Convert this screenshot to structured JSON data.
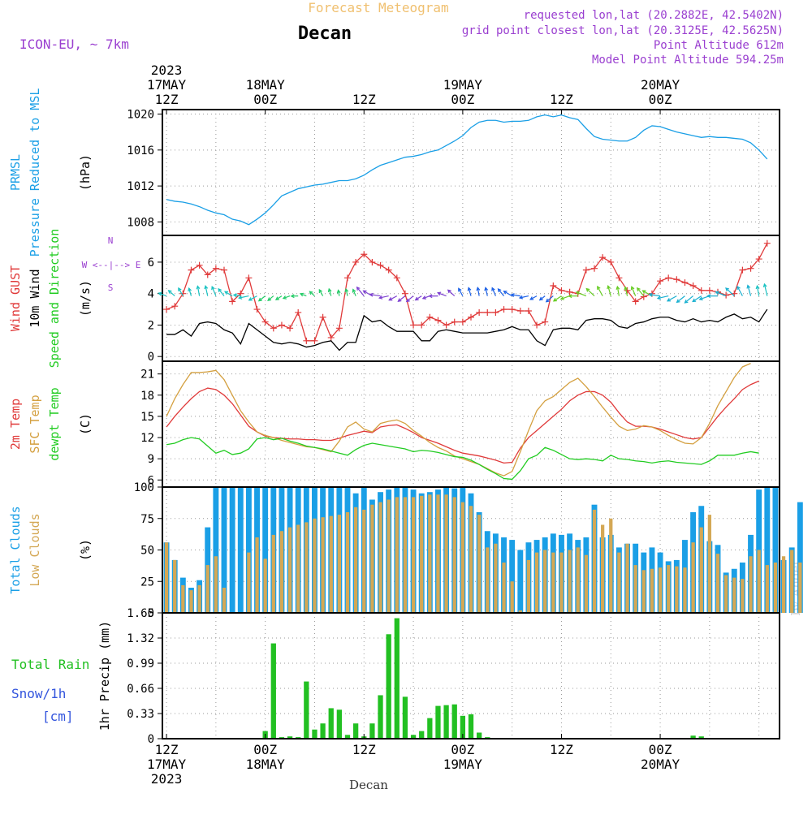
{
  "header": {
    "title": "Forecast Meteogram",
    "location": "Decan",
    "model": "ICON-EU, ~ 7km",
    "requested": "requested lon,lat (20.2882E, 42.5402N)",
    "grid_point": "grid point closest lon,lat (20.3125E, 42.5625N)",
    "point_alt": "Point Altitude 612m",
    "model_alt": "Model Point Altitude 594.25m",
    "footer": "Decan",
    "credit": "by Angel"
  },
  "time_axis": {
    "top": [
      {
        "t": 12,
        "lines": [
          "2023",
          "17MAY",
          "12Z"
        ]
      },
      {
        "t": 24,
        "lines": [
          "18MAY",
          "00Z"
        ]
      },
      {
        "t": 36,
        "lines": [
          "12Z"
        ]
      },
      {
        "t": 48,
        "lines": [
          "19MAY",
          "00Z"
        ]
      },
      {
        "t": 60,
        "lines": [
          "12Z"
        ]
      },
      {
        "t": 72,
        "lines": [
          "20MAY",
          "00Z"
        ]
      }
    ],
    "bottom": [
      {
        "t": 12,
        "lines": [
          "12Z",
          "17MAY",
          "2023"
        ]
      },
      {
        "t": 24,
        "lines": [
          "00Z",
          "18MAY"
        ]
      },
      {
        "t": 36,
        "lines": [
          "12Z"
        ]
      },
      {
        "t": 48,
        "lines": [
          "00Z",
          "19MAY"
        ]
      },
      {
        "t": 60,
        "lines": [
          "12Z"
        ]
      },
      {
        "t": 72,
        "lines": [
          "00Z",
          "20MAY"
        ]
      }
    ]
  },
  "colors": {
    "pressure": "#1a9fe6",
    "gust": "#e03a3a",
    "wind": "#000000",
    "t2m": "#e03a3a",
    "sfc": "#d4a040",
    "dew": "#22cc22",
    "total_cloud": "#1a9fe6",
    "low_cloud": "#d4a855",
    "rain": "#22c022",
    "snow": "#3355dd",
    "purple": "#9a3fd0",
    "title_orange": "#f0c070"
  },
  "chart_data": [
    {
      "type": "line",
      "panel": "pressure",
      "label_lines": [
        "PRMSL",
        "Pressure Reduced to MSL"
      ],
      "unit": "(hPa)",
      "x_start": 12,
      "x_step": 1,
      "ylim": [
        1006.5,
        1020.5
      ],
      "yticks": [
        1008,
        1012,
        1016,
        1020
      ],
      "series": [
        {
          "values": [
            1010.5,
            1010.3,
            1010.2,
            1010.0,
            1009.7,
            1009.3,
            1009.0,
            1008.8,
            1008.3,
            1008.1,
            1007.7,
            1008.3,
            1009.0,
            1009.9,
            1010.9,
            1011.3,
            1011.7,
            1011.9,
            1012.1,
            1012.2,
            1012.4,
            1012.6,
            1012.6,
            1012.8,
            1013.2,
            1013.8,
            1014.3,
            1014.6,
            1014.9,
            1015.2,
            1015.3,
            1015.5,
            1015.8,
            1016.0,
            1016.5,
            1017.0,
            1017.6,
            1018.5,
            1019.1,
            1019.3,
            1019.3,
            1019.1,
            1019.2,
            1019.2,
            1019.3,
            1019.7,
            1019.9,
            1019.7,
            1019.9,
            1019.6,
            1019.4,
            1018.4,
            1017.5,
            1017.2,
            1017.1,
            1017.0,
            1017.0,
            1017.4,
            1018.2,
            1018.7,
            1018.6,
            1018.3,
            1018.0,
            1017.8,
            1017.6,
            1017.4,
            1017.5,
            1017.4,
            1017.4,
            1017.3,
            1017.2,
            1016.8,
            1016.0,
            1015.0
          ]
        }
      ]
    },
    {
      "type": "line",
      "panel": "wind",
      "label_lines": [
        "Wind GUST",
        "10m Wind",
        "Speed and Direction"
      ],
      "unit": "(m/s)",
      "compass": [
        "N",
        "W <--|--> E",
        "S"
      ],
      "x_start": 12,
      "x_step": 1,
      "ylim": [
        -0.3,
        7.7
      ],
      "yticks": [
        0,
        2,
        4,
        6
      ],
      "series": [
        {
          "name": "Wind GUST",
          "values": [
            3.0,
            3.2,
            4.0,
            5.5,
            5.8,
            5.2,
            5.6,
            5.5,
            3.5,
            4.0,
            5.0,
            3.0,
            2.2,
            1.8,
            2.0,
            1.8,
            2.8,
            1.0,
            1.0,
            2.5,
            1.2,
            1.8,
            5.0,
            6.0,
            6.5,
            6.0,
            5.8,
            5.5,
            5.0,
            4.0,
            2.0,
            2.0,
            2.5,
            2.3,
            2.0,
            2.2,
            2.2,
            2.5,
            2.8,
            2.8,
            2.8,
            3.0,
            3.0,
            2.9,
            2.9,
            2.0,
            2.2,
            4.5,
            4.2,
            4.1,
            4.0,
            5.5,
            5.6,
            6.3,
            6.0,
            5.0,
            4.2,
            3.5,
            3.8,
            4.0,
            4.8,
            5.0,
            4.9,
            4.7,
            4.5,
            4.2,
            4.2,
            4.1,
            3.9,
            4.0,
            5.5,
            5.6,
            6.2,
            7.2
          ]
        },
        {
          "name": "10m Wind",
          "values": [
            1.4,
            1.4,
            1.7,
            1.3,
            2.1,
            2.2,
            2.1,
            1.7,
            1.5,
            0.8,
            2.1,
            1.7,
            1.3,
            0.9,
            0.8,
            0.9,
            0.8,
            0.6,
            0.7,
            0.9,
            1.0,
            0.4,
            0.9,
            0.9,
            2.6,
            2.2,
            2.3,
            1.9,
            1.6,
            1.6,
            1.6,
            1.0,
            1.0,
            1.6,
            1.7,
            1.6,
            1.5,
            1.5,
            1.5,
            1.5,
            1.6,
            1.7,
            1.9,
            1.7,
            1.7,
            1.0,
            0.7,
            1.7,
            1.8,
            1.8,
            1.7,
            2.3,
            2.4,
            2.4,
            2.3,
            1.9,
            1.8,
            2.1,
            2.2,
            2.4,
            2.5,
            2.5,
            2.3,
            2.2,
            2.4,
            2.2,
            2.3,
            2.2,
            2.5,
            2.7,
            2.4,
            2.5,
            2.2,
            3.0
          ]
        }
      ]
    },
    {
      "type": "line",
      "panel": "temperature",
      "label_lines": [
        "2m Temp",
        "SFC Temp",
        "dewpt Temp"
      ],
      "unit": "(C)",
      "x_start": 12,
      "x_step": 1,
      "ylim": [
        5.0,
        22.8
      ],
      "yticks": [
        6,
        9,
        12,
        15,
        18,
        21
      ],
      "series": [
        {
          "name": "2m Temp",
          "values": [
            13.5,
            15.0,
            16.3,
            17.5,
            18.5,
            19.0,
            18.8,
            18.0,
            16.8,
            15.2,
            13.6,
            12.8,
            12.2,
            12.0,
            11.9,
            11.8,
            11.8,
            11.7,
            11.7,
            11.6,
            11.6,
            11.9,
            12.3,
            12.6,
            12.9,
            12.7,
            13.5,
            13.7,
            13.8,
            13.3,
            12.7,
            12.0,
            11.6,
            11.2,
            10.7,
            10.2,
            9.8,
            9.6,
            9.4,
            9.1,
            8.8,
            8.4,
            8.5,
            10.5,
            12.0,
            13.0,
            14.0,
            15.0,
            16.0,
            17.2,
            18.0,
            18.5,
            18.5,
            18.0,
            17.0,
            15.5,
            14.2,
            13.6,
            13.6,
            13.5,
            13.2,
            12.8,
            12.4,
            12.0,
            11.8,
            12.0,
            13.5,
            15.0,
            16.3,
            17.5,
            18.8,
            19.5,
            20.0
          ]
        },
        {
          "name": "SFC Temp",
          "values": [
            15.0,
            17.5,
            19.5,
            21.2,
            21.2,
            21.3,
            21.5,
            20.2,
            18.0,
            15.8,
            14.2,
            12.8,
            12.3,
            12.0,
            11.6,
            11.3,
            11.0,
            10.7,
            10.6,
            10.3,
            10.0,
            11.5,
            13.5,
            14.2,
            13.2,
            12.8,
            14.0,
            14.3,
            14.5,
            14.0,
            13.0,
            12.2,
            11.3,
            10.6,
            10.1,
            9.4,
            9.0,
            8.6,
            8.2,
            7.6,
            7.0,
            6.6,
            7.2,
            10.0,
            13.0,
            15.8,
            17.2,
            17.8,
            18.8,
            19.8,
            20.4,
            19.2,
            17.8,
            16.3,
            14.9,
            13.6,
            13.0,
            13.2,
            13.7,
            13.5,
            13.0,
            12.3,
            11.7,
            11.2,
            11.1,
            12.0,
            14.0,
            16.5,
            18.5,
            20.5,
            22.0,
            22.5
          ]
        },
        {
          "name": "dewpt Temp",
          "values": [
            11.0,
            11.2,
            11.7,
            12.0,
            11.8,
            10.8,
            9.8,
            10.2,
            9.6,
            9.8,
            10.4,
            11.8,
            12.0,
            11.7,
            11.9,
            11.5,
            11.2,
            10.8,
            10.6,
            10.4,
            10.1,
            9.8,
            9.5,
            10.3,
            10.9,
            11.2,
            11.0,
            10.8,
            10.6,
            10.4,
            10.0,
            10.2,
            10.1,
            9.9,
            9.6,
            9.3,
            9.2,
            8.8,
            8.2,
            7.5,
            6.9,
            6.2,
            6.1,
            7.3,
            9.0,
            9.5,
            10.6,
            10.2,
            9.6,
            9.0,
            8.9,
            9.0,
            8.9,
            8.7,
            9.5,
            9.0,
            8.9,
            8.7,
            8.6,
            8.4,
            8.6,
            8.7,
            8.5,
            8.4,
            8.3,
            8.2,
            8.7,
            9.5,
            9.5,
            9.5,
            9.8,
            10.0,
            9.8
          ]
        }
      ]
    },
    {
      "type": "bar",
      "panel": "clouds",
      "label_lines": [
        "Total Clouds",
        "Low Clouds"
      ],
      "unit": "(%)",
      "x_start": 12,
      "x_step": 1,
      "ylim": [
        0,
        100
      ],
      "yticks": [
        0,
        25,
        50,
        75,
        100
      ],
      "series": [
        {
          "name": "Total Clouds",
          "values": [
            56,
            42,
            28,
            20,
            26,
            68,
            100,
            100,
            100,
            100,
            100,
            100,
            100,
            100,
            100,
            100,
            100,
            100,
            100,
            100,
            100,
            100,
            100,
            95,
            100,
            90,
            96,
            98,
            100,
            100,
            98,
            95,
            96,
            98,
            100,
            99,
            100,
            95,
            80,
            65,
            63,
            60,
            58,
            50,
            56,
            58,
            60,
            63,
            62,
            63,
            58,
            60,
            86,
            60,
            62,
            52,
            55,
            55,
            48,
            52,
            48,
            41,
            42,
            58,
            80,
            85,
            57,
            54,
            32,
            35,
            40,
            62,
            98,
            100,
            100,
            42,
            52,
            88
          ]
        },
        {
          "name": "Low Clouds",
          "values": [
            56,
            42,
            22,
            18,
            22,
            38,
            45,
            20,
            0,
            0,
            48,
            60,
            43,
            62,
            65,
            68,
            70,
            72,
            75,
            76,
            77,
            78,
            80,
            84,
            82,
            86,
            88,
            90,
            92,
            92,
            92,
            93,
            94,
            94,
            94,
            92,
            88,
            85,
            78,
            52,
            55,
            40,
            25,
            2,
            42,
            48,
            50,
            48,
            48,
            50,
            52,
            46,
            82,
            70,
            75,
            48,
            55,
            38,
            34,
            35,
            36,
            38,
            37,
            36,
            56,
            68,
            78,
            47,
            30,
            28,
            27,
            45,
            50,
            38,
            40,
            45,
            50,
            40
          ]
        }
      ]
    },
    {
      "type": "bar",
      "panel": "precip",
      "label_lines": [
        "1hr Precip (mm)"
      ],
      "left_labels": [
        "Total  Rain",
        "Snow/1h",
        "[cm]"
      ],
      "x_start": 12,
      "x_step": 1,
      "ylim": [
        0,
        1.65
      ],
      "yticks": [
        0,
        0.33,
        0.66,
        0.99,
        1.32,
        1.65
      ],
      "series": [
        {
          "name": "Total Rain",
          "values": [
            0,
            0,
            0,
            0,
            0,
            0,
            0,
            0,
            0,
            0,
            0,
            0,
            0.1,
            1.25,
            0.02,
            0.03,
            0.02,
            0.75,
            0.12,
            0.2,
            0.4,
            0.38,
            0.05,
            0.2,
            0.03,
            0.2,
            0.57,
            1.37,
            1.58,
            0.55,
            0.05,
            0.1,
            0.27,
            0.43,
            0.44,
            0.45,
            0.3,
            0.32,
            0.08,
            0.02,
            0,
            0,
            0,
            0,
            0,
            0,
            0,
            0,
            0,
            0,
            0,
            0,
            0,
            0,
            0,
            0,
            0,
            0,
            0,
            0,
            0,
            0,
            0,
            0,
            0.04,
            0.03,
            0,
            0,
            0,
            0,
            0,
            0,
            0,
            0,
            0,
            0,
            0,
            0
          ]
        }
      ]
    }
  ]
}
